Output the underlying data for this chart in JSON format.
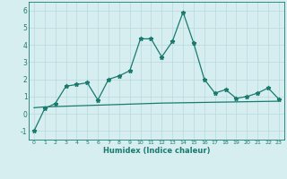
{
  "xlabel": "Humidex (Indice chaleur)",
  "background_color": "#d6eef0",
  "grid_color": "#b8d8dc",
  "line_color": "#1a7a6e",
  "x_values": [
    0,
    1,
    2,
    3,
    4,
    5,
    6,
    7,
    8,
    9,
    10,
    11,
    12,
    13,
    14,
    15,
    16,
    17,
    18,
    19,
    20,
    21,
    22,
    23
  ],
  "y_main": [
    -1.0,
    0.3,
    0.6,
    1.6,
    1.7,
    1.8,
    0.8,
    2.0,
    2.2,
    2.5,
    4.35,
    4.35,
    3.3,
    4.2,
    5.9,
    4.1,
    2.0,
    1.2,
    1.4,
    0.9,
    1.0,
    1.2,
    1.5,
    0.85
  ],
  "y_flat": [
    0.35,
    0.4,
    0.42,
    0.44,
    0.46,
    0.48,
    0.5,
    0.52,
    0.54,
    0.56,
    0.58,
    0.6,
    0.62,
    0.63,
    0.64,
    0.65,
    0.66,
    0.67,
    0.68,
    0.69,
    0.7,
    0.71,
    0.72,
    0.73
  ],
  "ylim": [
    -1.5,
    6.5
  ],
  "xlim": [
    -0.5,
    23.5
  ],
  "yticks": [
    -1,
    0,
    1,
    2,
    3,
    4,
    5,
    6
  ],
  "xticks": [
    0,
    1,
    2,
    3,
    4,
    5,
    6,
    7,
    8,
    9,
    10,
    11,
    12,
    13,
    14,
    15,
    16,
    17,
    18,
    19,
    20,
    21,
    22,
    23
  ]
}
